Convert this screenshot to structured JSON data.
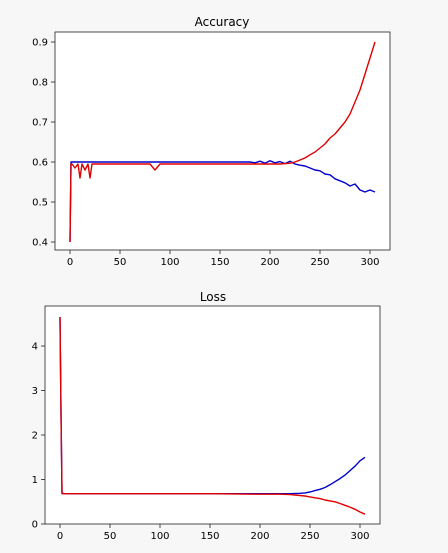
{
  "chart_data": [
    {
      "type": "line",
      "title": "Accuracy",
      "xlabel": "",
      "ylabel": "",
      "xlim": [
        -15,
        320
      ],
      "ylim": [
        0.38,
        0.925
      ],
      "xticks": [
        0,
        50,
        100,
        150,
        200,
        250,
        300
      ],
      "yticks": [
        0.4,
        0.5,
        0.6,
        0.7,
        0.8,
        0.9
      ],
      "grid": false,
      "series": [
        {
          "color": "#0000cc",
          "x": [
            0,
            1,
            2,
            5,
            10,
            15,
            20,
            30,
            50,
            80,
            100,
            120,
            150,
            170,
            180,
            185,
            190,
            195,
            200,
            205,
            210,
            215,
            220,
            225,
            230,
            235,
            240,
            245,
            250,
            255,
            260,
            265,
            270,
            275,
            280,
            285,
            290,
            295,
            300,
            305
          ],
          "y": [
            0.4,
            0.6,
            0.6,
            0.6,
            0.6,
            0.6,
            0.6,
            0.6,
            0.6,
            0.6,
            0.6,
            0.6,
            0.6,
            0.6,
            0.6,
            0.598,
            0.602,
            0.597,
            0.603,
            0.598,
            0.601,
            0.596,
            0.602,
            0.595,
            0.592,
            0.59,
            0.585,
            0.58,
            0.578,
            0.57,
            0.568,
            0.558,
            0.553,
            0.548,
            0.54,
            0.545,
            0.53,
            0.525,
            0.53,
            0.525
          ]
        },
        {
          "color": "#e00000",
          "x": [
            0,
            1,
            2,
            5,
            8,
            10,
            12,
            15,
            18,
            20,
            22,
            25,
            30,
            40,
            50,
            60,
            70,
            80,
            85,
            90,
            100,
            120,
            150,
            170,
            180,
            190,
            200,
            210,
            220,
            225,
            230,
            235,
            240,
            245,
            250,
            255,
            260,
            265,
            270,
            275,
            280,
            285,
            290,
            295,
            300,
            305
          ],
          "y": [
            0.4,
            0.595,
            0.595,
            0.585,
            0.595,
            0.56,
            0.595,
            0.58,
            0.595,
            0.56,
            0.595,
            0.595,
            0.595,
            0.595,
            0.595,
            0.595,
            0.595,
            0.595,
            0.58,
            0.595,
            0.595,
            0.595,
            0.595,
            0.595,
            0.595,
            0.595,
            0.595,
            0.595,
            0.597,
            0.6,
            0.605,
            0.61,
            0.618,
            0.625,
            0.635,
            0.645,
            0.66,
            0.67,
            0.685,
            0.7,
            0.72,
            0.75,
            0.78,
            0.82,
            0.86,
            0.9
          ]
        }
      ]
    },
    {
      "type": "line",
      "title": "Loss",
      "xlabel": "",
      "ylabel": "",
      "xlim": [
        -15,
        320
      ],
      "ylim": [
        0,
        4.9
      ],
      "xticks": [
        0,
        50,
        100,
        150,
        200,
        250,
        300
      ],
      "yticks": [
        0,
        1,
        2,
        3,
        4
      ],
      "grid": false,
      "series": [
        {
          "color": "#0000cc",
          "x": [
            0,
            1,
            2,
            5,
            10,
            20,
            50,
            100,
            150,
            200,
            220,
            230,
            240,
            245,
            250,
            255,
            260,
            265,
            270,
            275,
            280,
            285,
            290,
            295,
            300,
            305
          ],
          "y": [
            4.65,
            2.5,
            0.69,
            0.68,
            0.68,
            0.68,
            0.68,
            0.68,
            0.68,
            0.68,
            0.68,
            0.68,
            0.69,
            0.7,
            0.72,
            0.75,
            0.78,
            0.82,
            0.88,
            0.95,
            1.02,
            1.1,
            1.2,
            1.3,
            1.42,
            1.5
          ]
        },
        {
          "color": "#e00000",
          "x": [
            0,
            1,
            2,
            5,
            10,
            20,
            50,
            100,
            150,
            200,
            220,
            230,
            240,
            245,
            250,
            255,
            260,
            265,
            270,
            275,
            280,
            285,
            290,
            295,
            300,
            305
          ],
          "y": [
            4.65,
            2.5,
            0.68,
            0.68,
            0.68,
            0.68,
            0.68,
            0.68,
            0.68,
            0.67,
            0.67,
            0.66,
            0.64,
            0.63,
            0.61,
            0.59,
            0.57,
            0.54,
            0.52,
            0.5,
            0.46,
            0.42,
            0.38,
            0.33,
            0.27,
            0.22
          ]
        }
      ]
    }
  ]
}
